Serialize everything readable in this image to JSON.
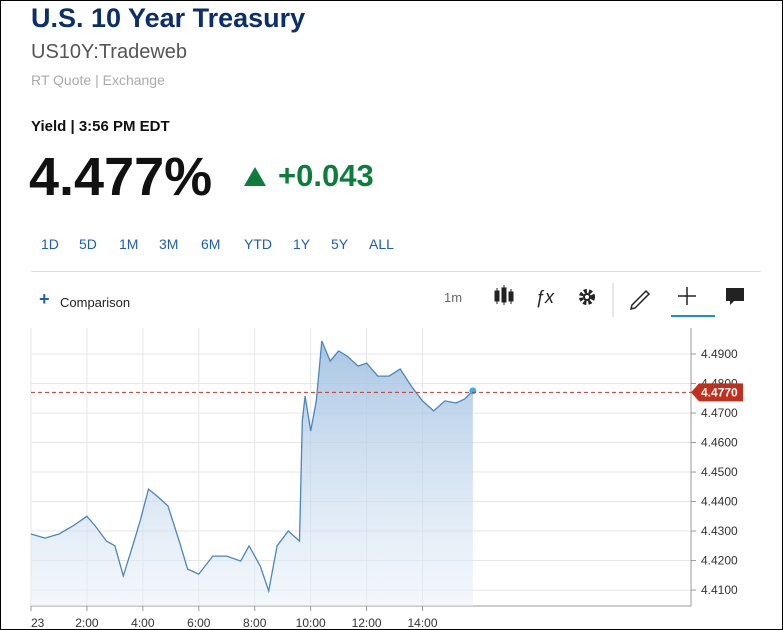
{
  "header": {
    "title": "U.S. 10 Year Treasury",
    "symbol": "US10Y:Tradeweb",
    "source": "RT Quote | Exchange"
  },
  "quote": {
    "label": "Yield | 3:56 PM EDT",
    "price": "4.477%",
    "change": "+0.043"
  },
  "ranges": [
    "1D",
    "5D",
    "1M",
    "3M",
    "6M",
    "YTD",
    "1Y",
    "5Y",
    "ALL"
  ],
  "toolbar": {
    "comparison": "Comparison",
    "interval": "1m"
  },
  "chart": {
    "type": "area",
    "x": [
      0,
      0.5,
      1,
      1.5,
      2,
      2.3,
      2.7,
      3,
      3.3,
      3.6,
      3.9,
      4.2,
      4.5,
      4.9,
      5.3,
      5.6,
      6,
      6.5,
      7,
      7.5,
      7.8,
      8.2,
      8.5,
      8.8,
      9.2,
      9.6,
      9.7,
      9.8,
      10,
      10.2,
      10.4,
      10.7,
      11,
      11.3,
      11.7,
      12,
      12.4,
      12.8,
      13.2,
      13.6,
      14,
      14.4,
      14.8,
      15.2,
      15.5,
      15.8
    ],
    "values": [
      4.429,
      4.4276,
      4.429,
      4.4317,
      4.435,
      4.4317,
      4.4266,
      4.425,
      4.4148,
      4.4239,
      4.4334,
      4.4442,
      4.4419,
      4.4385,
      4.4266,
      4.4171,
      4.4154,
      4.4215,
      4.4215,
      4.4198,
      4.425,
      4.4181,
      4.4097,
      4.425,
      4.43,
      4.4266,
      4.4673,
      4.4758,
      4.4639,
      4.4741,
      4.4944,
      4.4876,
      4.491,
      4.4893,
      4.4859,
      4.4869,
      4.4825,
      4.4825,
      4.4849,
      4.4791,
      4.4741,
      4.4707,
      4.4741,
      4.4734,
      4.4747,
      4.4775
    ],
    "color": "#4a86c0",
    "xlim": [
      0,
      23.6
    ],
    "xticks": [
      {
        "value": 0,
        "label": "23"
      },
      {
        "value": 2,
        "label": "2:00"
      },
      {
        "value": 4,
        "label": "4:00"
      },
      {
        "value": 6,
        "label": "6:00"
      },
      {
        "value": 8,
        "label": "8:00"
      },
      {
        "value": 10,
        "label": "10:00"
      },
      {
        "value": 12,
        "label": "12:00"
      },
      {
        "value": 14,
        "label": "14:00"
      }
    ],
    "ylim": [
      4.4046,
      4.4988
    ],
    "yticks": [
      {
        "value": 4.41,
        "label": "4.4100"
      },
      {
        "value": 4.42,
        "label": "4.4200"
      },
      {
        "value": 4.43,
        "label": "4.4300"
      },
      {
        "value": 4.44,
        "label": "4.4400"
      },
      {
        "value": 4.45,
        "label": "4.4500"
      },
      {
        "value": 4.46,
        "label": "4.4600"
      },
      {
        "value": 4.47,
        "label": "4.4700"
      },
      {
        "value": 4.48,
        "label": "4.4800"
      },
      {
        "value": 4.49,
        "label": "4.4900"
      }
    ],
    "current": {
      "value": 4.477,
      "label": "4.4770"
    },
    "grid": true
  }
}
